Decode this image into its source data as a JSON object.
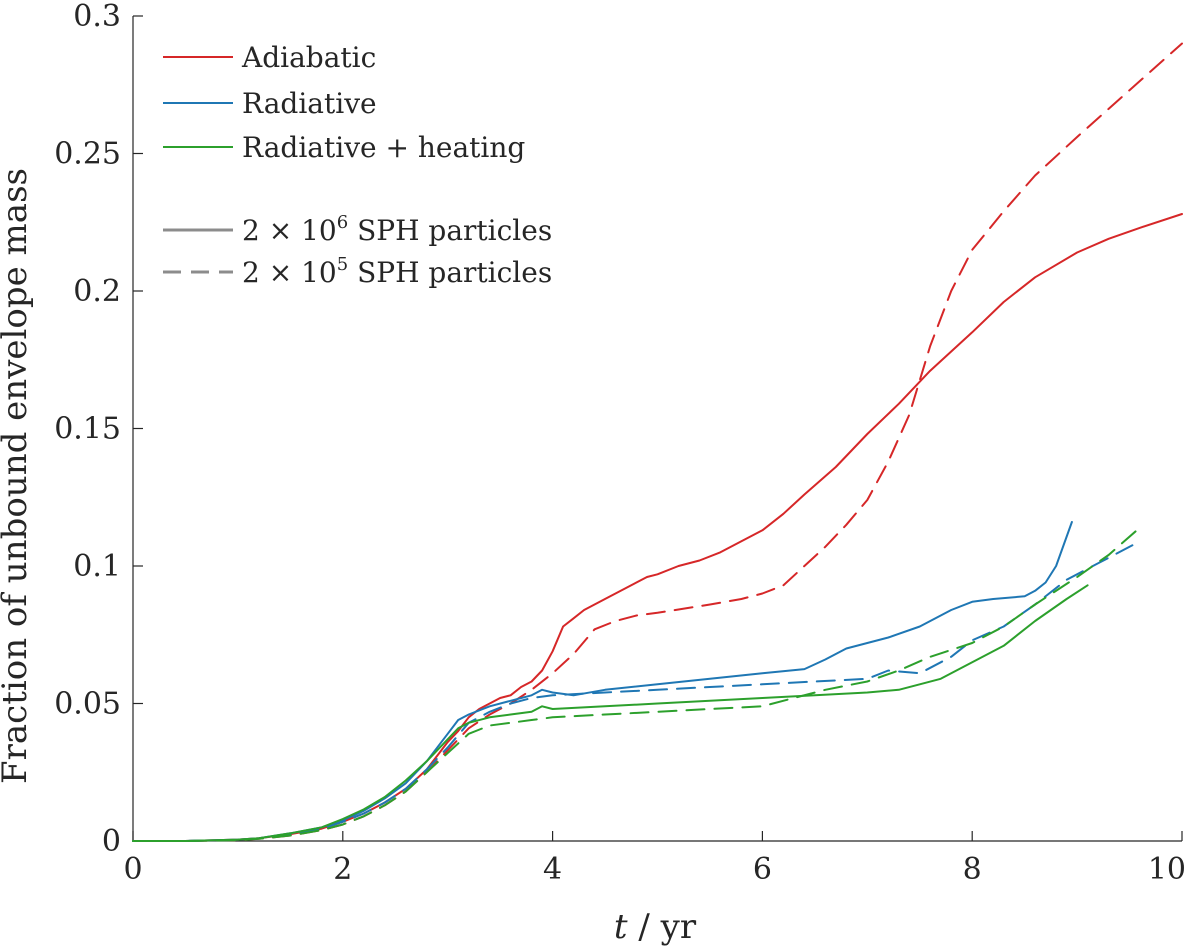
{
  "chart_data": {
    "type": "line",
    "title": "",
    "xlabel": "t / yr",
    "xlabel_var": "t",
    "xlabel_unit": " / yr",
    "ylabel": "Fraction of unbound envelope mass",
    "xlim": [
      0,
      10
    ],
    "ylim": [
      0,
      0.3
    ],
    "xticks": [
      0,
      2,
      4,
      6,
      8,
      10
    ],
    "yticks": [
      0,
      0.05,
      0.1,
      0.15,
      0.2,
      0.25,
      0.3
    ],
    "xtick_labels": [
      "0",
      "2",
      "4",
      "6",
      "8",
      "10"
    ],
    "ytick_labels": [
      "0",
      "0.05",
      "0.1",
      "0.15",
      "0.2",
      "0.25",
      "0.3"
    ],
    "grid": false,
    "legend_position": "top-left",
    "legend": {
      "entries": [
        {
          "label": "Adiabatic",
          "color": "#d62728"
        },
        {
          "label": "Radiative",
          "color": "#1f77b4"
        },
        {
          "label": "Radiative + heating",
          "color": "#2ca02c"
        }
      ],
      "styles": [
        {
          "prefix": "2 × 10",
          "exponent": "6",
          "suffix": " SPH particles",
          "style": "solid",
          "color": "#8c8c8c"
        },
        {
          "prefix": "2 × 10",
          "exponent": "5",
          "suffix": " SPH particles",
          "style": "dashed",
          "color": "#8c8c8c"
        }
      ]
    },
    "series": [
      {
        "name": "Adiabatic, 2×10^6 SPH particles",
        "color": "#d62728",
        "style": "solid",
        "x": [
          0,
          0.5,
          1,
          1.2,
          1.5,
          1.8,
          2,
          2.2,
          2.4,
          2.6,
          2.8,
          3,
          3.1,
          3.2,
          3.3,
          3.4,
          3.5,
          3.6,
          3.7,
          3.8,
          3.9,
          4,
          4.1,
          4.2,
          4.3,
          4.5,
          4.7,
          4.9,
          5,
          5.2,
          5.4,
          5.6,
          5.8,
          6,
          6.2,
          6.4,
          6.7,
          7,
          7.3,
          7.6,
          8,
          8.3,
          8.6,
          9,
          9.3,
          9.6,
          10
        ],
        "y": [
          0,
          0,
          0.0005,
          0.001,
          0.0025,
          0.0045,
          0.007,
          0.01,
          0.014,
          0.019,
          0.026,
          0.036,
          0.04,
          0.045,
          0.048,
          0.05,
          0.052,
          0.053,
          0.056,
          0.058,
          0.062,
          0.069,
          0.078,
          0.081,
          0.084,
          0.088,
          0.092,
          0.096,
          0.097,
          0.1,
          0.102,
          0.105,
          0.109,
          0.113,
          0.119,
          0.126,
          0.136,
          0.148,
          0.159,
          0.171,
          0.185,
          0.196,
          0.205,
          0.214,
          0.219,
          0.223,
          0.228
        ]
      },
      {
        "name": "Adiabatic, 2×10^5 SPH particles",
        "color": "#d62728",
        "style": "dashed",
        "x": [
          0,
          0.5,
          1,
          1.2,
          1.5,
          1.8,
          2,
          2.2,
          2.4,
          2.6,
          2.8,
          3,
          3.2,
          3.4,
          3.6,
          3.8,
          4,
          4.2,
          4.4,
          4.6,
          4.8,
          5,
          5.5,
          5.8,
          6,
          6.2,
          6.4,
          6.6,
          6.8,
          7,
          7.2,
          7.4,
          7.6,
          7.8,
          8,
          8.3,
          8.6,
          9,
          9.5,
          10
        ],
        "y": [
          0,
          0,
          0.0003,
          0.0008,
          0.002,
          0.004,
          0.006,
          0.009,
          0.013,
          0.018,
          0.025,
          0.033,
          0.041,
          0.046,
          0.05,
          0.055,
          0.061,
          0.068,
          0.077,
          0.08,
          0.082,
          0.083,
          0.086,
          0.088,
          0.09,
          0.093,
          0.1,
          0.107,
          0.115,
          0.124,
          0.138,
          0.155,
          0.18,
          0.2,
          0.215,
          0.229,
          0.242,
          0.256,
          0.273,
          0.29
        ]
      },
      {
        "name": "Radiative, 2×10^6 SPH particles",
        "color": "#1f77b4",
        "style": "solid",
        "x": [
          0,
          0.5,
          1,
          1.2,
          1.5,
          1.8,
          2,
          2.2,
          2.4,
          2.6,
          2.8,
          3,
          3.1,
          3.2,
          3.4,
          3.6,
          3.8,
          3.9,
          4,
          4.2,
          4.5,
          5,
          5.5,
          6,
          6.4,
          6.6,
          6.8,
          7,
          7.2,
          7.5,
          7.8,
          8,
          8.2,
          8.5,
          8.6,
          8.7,
          8.8,
          8.95
        ],
        "y": [
          0,
          0,
          0.0005,
          0.001,
          0.0028,
          0.005,
          0.0075,
          0.011,
          0.0155,
          0.021,
          0.029,
          0.039,
          0.044,
          0.046,
          0.049,
          0.051,
          0.053,
          0.055,
          0.054,
          0.053,
          0.055,
          0.057,
          0.059,
          0.061,
          0.0625,
          0.066,
          0.07,
          0.072,
          0.074,
          0.078,
          0.084,
          0.087,
          0.088,
          0.089,
          0.091,
          0.094,
          0.1,
          0.116
        ]
      },
      {
        "name": "Radiative, 2×10^5 SPH particles",
        "color": "#1f77b4",
        "style": "dashed",
        "x": [
          0,
          0.5,
          1,
          1.2,
          1.5,
          1.8,
          2,
          2.2,
          2.4,
          2.6,
          2.8,
          3,
          3.2,
          3.4,
          3.6,
          3.8,
          4,
          4.5,
          5,
          5.5,
          6,
          6.5,
          7,
          7.2,
          7.5,
          7.8,
          8,
          8.3,
          8.6,
          8.9,
          9.2,
          9.6
        ],
        "y": [
          0,
          0,
          0.0004,
          0.0009,
          0.0025,
          0.0045,
          0.007,
          0.01,
          0.014,
          0.019,
          0.026,
          0.034,
          0.043,
          0.047,
          0.05,
          0.052,
          0.053,
          0.054,
          0.055,
          0.056,
          0.057,
          0.058,
          0.059,
          0.062,
          0.061,
          0.067,
          0.073,
          0.078,
          0.086,
          0.095,
          0.101,
          0.109
        ]
      },
      {
        "name": "Radiative + heating, 2×10^6 SPH particles",
        "color": "#2ca02c",
        "style": "solid",
        "x": [
          0,
          0.5,
          1,
          1.2,
          1.5,
          1.8,
          2,
          2.2,
          2.4,
          2.6,
          2.8,
          3,
          3.1,
          3.2,
          3.4,
          3.6,
          3.8,
          3.9,
          4,
          4.5,
          5,
          5.5,
          6,
          6.5,
          7,
          7.3,
          7.5,
          7.7,
          8,
          8.3,
          8.6,
          8.9,
          9.1
        ],
        "y": [
          0,
          0,
          0.0005,
          0.001,
          0.0028,
          0.005,
          0.008,
          0.0115,
          0.016,
          0.022,
          0.029,
          0.037,
          0.041,
          0.043,
          0.045,
          0.046,
          0.047,
          0.049,
          0.048,
          0.049,
          0.05,
          0.051,
          0.052,
          0.053,
          0.054,
          0.055,
          0.057,
          0.059,
          0.065,
          0.071,
          0.08,
          0.088,
          0.093
        ]
      },
      {
        "name": "Radiative + heating, 2×10^5 SPH particles",
        "color": "#2ca02c",
        "style": "dashed",
        "x": [
          0,
          0.5,
          1,
          1.2,
          1.5,
          1.8,
          2,
          2.2,
          2.4,
          2.6,
          2.8,
          3,
          3.2,
          3.4,
          3.6,
          3.8,
          4,
          4.5,
          5,
          5.5,
          6,
          6.3,
          6.6,
          7,
          7.3,
          7.6,
          8,
          8.3,
          8.6,
          9,
          9.3,
          9.6
        ],
        "y": [
          0,
          0,
          0.0003,
          0.0008,
          0.002,
          0.004,
          0.006,
          0.009,
          0.013,
          0.018,
          0.025,
          0.032,
          0.039,
          0.042,
          0.043,
          0.044,
          0.045,
          0.046,
          0.047,
          0.048,
          0.049,
          0.052,
          0.055,
          0.058,
          0.062,
          0.067,
          0.072,
          0.078,
          0.086,
          0.096,
          0.104,
          0.114
        ]
      }
    ]
  }
}
